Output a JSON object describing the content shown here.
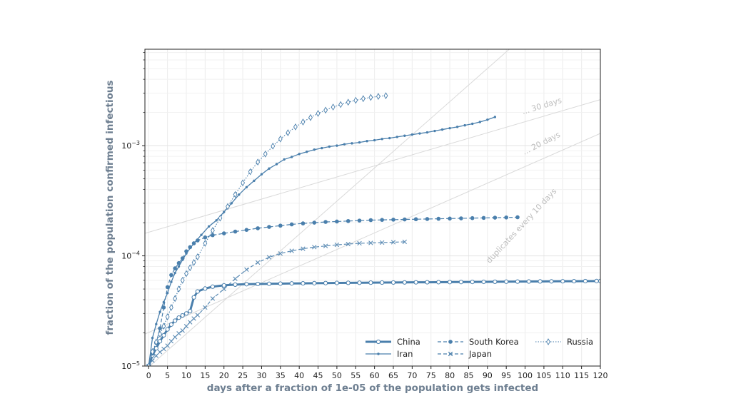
{
  "chart_data": {
    "type": "line",
    "title": "",
    "xlabel": "days after a fraction of 1e-05 of the population gets infected",
    "ylabel": "fraction of the population confirmed infectious",
    "yscale": "log",
    "xlim": [
      -1,
      120
    ],
    "ylim": [
      1e-05,
      0.0075
    ],
    "xticks": [
      0,
      5,
      10,
      15,
      20,
      25,
      30,
      35,
      40,
      45,
      50,
      55,
      60,
      65,
      70,
      75,
      80,
      85,
      90,
      95,
      100,
      105,
      110,
      115,
      120
    ],
    "yticks": [
      {
        "value": 1e-05,
        "base": "10",
        "exp": "−5"
      },
      {
        "value": 0.0001,
        "base": "10",
        "exp": "−4"
      },
      {
        "value": 0.001,
        "base": "10",
        "exp": "−3"
      }
    ],
    "grid": true,
    "legend_position": "bottom-right",
    "accent_color": "#4a7fac",
    "reference_lines": [
      {
        "label": "... 30 days",
        "x0": -1,
        "y0": 0.00016,
        "doubling_days": 30
      },
      {
        "label": "... 20 days",
        "x0": -1,
        "y0": 1.95e-05,
        "doubling_days": 20
      },
      {
        "label": "duplicates every 10 days",
        "x0": 0,
        "y0": 9.8e-06,
        "doubling_days": 10
      }
    ],
    "series": [
      {
        "name": "China",
        "style": "china",
        "x": [
          0,
          1,
          2,
          3,
          4,
          5,
          6,
          7,
          8,
          9,
          10,
          11,
          12,
          13,
          15,
          17,
          20,
          23,
          26,
          29,
          32,
          35,
          38,
          41,
          44,
          47,
          50,
          53,
          56,
          59,
          62,
          65,
          68,
          71,
          74,
          77,
          80,
          83,
          86,
          89,
          92,
          95,
          98,
          101,
          104,
          107,
          110,
          113,
          116,
          119,
          120
        ],
        "y": [
          1e-05,
          1.25e-05,
          1.45e-05,
          1.68e-05,
          1.9e-05,
          2.15e-05,
          2.38e-05,
          2.58e-05,
          2.75e-05,
          2.88e-05,
          3e-05,
          3.15e-05,
          4.2e-05,
          4.75e-05,
          5.05e-05,
          5.25e-05,
          5.4e-05,
          5.48e-05,
          5.53e-05,
          5.56e-05,
          5.58e-05,
          5.6e-05,
          5.62e-05,
          5.63e-05,
          5.65e-05,
          5.66e-05,
          5.68e-05,
          5.69e-05,
          5.7e-05,
          5.71e-05,
          5.72e-05,
          5.73e-05,
          5.74e-05,
          5.75e-05,
          5.76e-05,
          5.77e-05,
          5.78e-05,
          5.79e-05,
          5.8e-05,
          5.81e-05,
          5.82e-05,
          5.83e-05,
          5.84e-05,
          5.85e-05,
          5.86e-05,
          5.87e-05,
          5.88e-05,
          5.89e-05,
          5.9e-05,
          5.91e-05,
          5.91e-05
        ]
      },
      {
        "name": "Iran",
        "style": "iran",
        "x": [
          0,
          1,
          2,
          3,
          4,
          5,
          6,
          7,
          8,
          9,
          10,
          12,
          14,
          16,
          18,
          20,
          22,
          24,
          26,
          28,
          30,
          32,
          34,
          36,
          38,
          40,
          42,
          44,
          46,
          48,
          50,
          52,
          54,
          56,
          58,
          60,
          62,
          64,
          66,
          68,
          70,
          72,
          74,
          76,
          78,
          80,
          82,
          84,
          86,
          88,
          90,
          92
        ],
        "y": [
          1e-05,
          1.8e-05,
          2.4e-05,
          3.1e-05,
          3.8e-05,
          4.6e-05,
          5.8e-05,
          7e-05,
          8e-05,
          9.2e-05,
          0.000105,
          0.00013,
          0.000155,
          0.000185,
          0.00021,
          0.00025,
          0.0003,
          0.00036,
          0.00042,
          0.00048,
          0.00055,
          0.00062,
          0.00068,
          0.00075,
          0.00079,
          0.00084,
          0.00088,
          0.00092,
          0.00095,
          0.00098,
          0.001,
          0.00103,
          0.00105,
          0.00107,
          0.0011,
          0.00112,
          0.00115,
          0.00117,
          0.0012,
          0.00123,
          0.00126,
          0.00129,
          0.00132,
          0.00136,
          0.0014,
          0.00144,
          0.00148,
          0.00153,
          0.00158,
          0.00164,
          0.00172,
          0.00182
        ]
      },
      {
        "name": "South Korea",
        "style": "korea",
        "x": [
          0,
          1,
          2,
          3,
          4,
          5,
          6,
          7,
          8,
          9,
          10,
          11,
          12,
          13,
          15,
          17,
          20,
          23,
          26,
          29,
          32,
          35,
          38,
          41,
          44,
          47,
          50,
          53,
          56,
          59,
          62,
          65,
          68,
          71,
          74,
          77,
          80,
          83,
          86,
          89,
          92,
          95,
          98
        ],
        "y": [
          1e-05,
          1.3e-05,
          1.62e-05,
          2.2e-05,
          3.4e-05,
          5.2e-05,
          6.7e-05,
          7.7e-05,
          8.6e-05,
          9.5e-05,
          0.00011,
          0.00012,
          0.00013,
          0.000138,
          0.000147,
          0.000154,
          0.00016,
          0.000166,
          0.000172,
          0.000178,
          0.000183,
          0.000188,
          0.000193,
          0.000197,
          0.0002,
          0.000203,
          0.000205,
          0.000207,
          0.000209,
          0.000211,
          0.000212,
          0.000213,
          0.000214,
          0.000215,
          0.000216,
          0.000217,
          0.000218,
          0.000219,
          0.00022,
          0.000221,
          0.000222,
          0.000223,
          0.000224
        ]
      },
      {
        "name": "Japan",
        "style": "japan",
        "x": [
          0,
          1,
          2,
          3,
          4,
          5,
          6,
          7,
          8,
          9,
          10,
          11,
          12,
          13,
          15,
          17,
          20,
          23,
          26,
          29,
          32,
          35,
          38,
          41,
          44,
          47,
          50,
          53,
          56,
          59,
          62,
          65,
          68
        ],
        "y": [
          1e-05,
          1.12e-05,
          1.24e-05,
          1.34e-05,
          1.43e-05,
          1.53e-05,
          1.68e-05,
          1.83e-05,
          1.98e-05,
          2.1e-05,
          2.3e-05,
          2.5e-05,
          2.7e-05,
          2.9e-05,
          3.4e-05,
          4.1e-05,
          5e-05,
          6.2e-05,
          7.5e-05,
          8.7e-05,
          9.7e-05,
          0.000105,
          0.000111,
          0.000116,
          0.00012,
          0.000123,
          0.000126,
          0.000128,
          0.00013,
          0.000131,
          0.000132,
          0.000133,
          0.000134
        ]
      },
      {
        "name": "Russia",
        "style": "russia",
        "x": [
          0,
          1,
          2,
          3,
          4,
          5,
          6,
          7,
          8,
          9,
          10,
          11,
          12,
          13,
          15,
          17,
          19,
          21,
          23,
          25,
          27,
          29,
          31,
          33,
          35,
          37,
          39,
          41,
          43,
          45,
          47,
          49,
          51,
          53,
          55,
          57,
          59,
          61,
          63
        ],
        "y": [
          1e-05,
          1.35e-05,
          1.65e-05,
          1.95e-05,
          2.3e-05,
          2.8e-05,
          3.4e-05,
          4.1e-05,
          5e-05,
          6e-05,
          6.9e-05,
          7.8e-05,
          8.7e-05,
          9.8e-05,
          0.00013,
          0.00017,
          0.00022,
          0.00028,
          0.00036,
          0.00046,
          0.00058,
          0.00071,
          0.00084,
          0.00099,
          0.00115,
          0.00131,
          0.00148,
          0.00164,
          0.0018,
          0.00196,
          0.0021,
          0.00224,
          0.00236,
          0.00248,
          0.00258,
          0.00267,
          0.00274,
          0.0028,
          0.00284
        ]
      }
    ]
  }
}
